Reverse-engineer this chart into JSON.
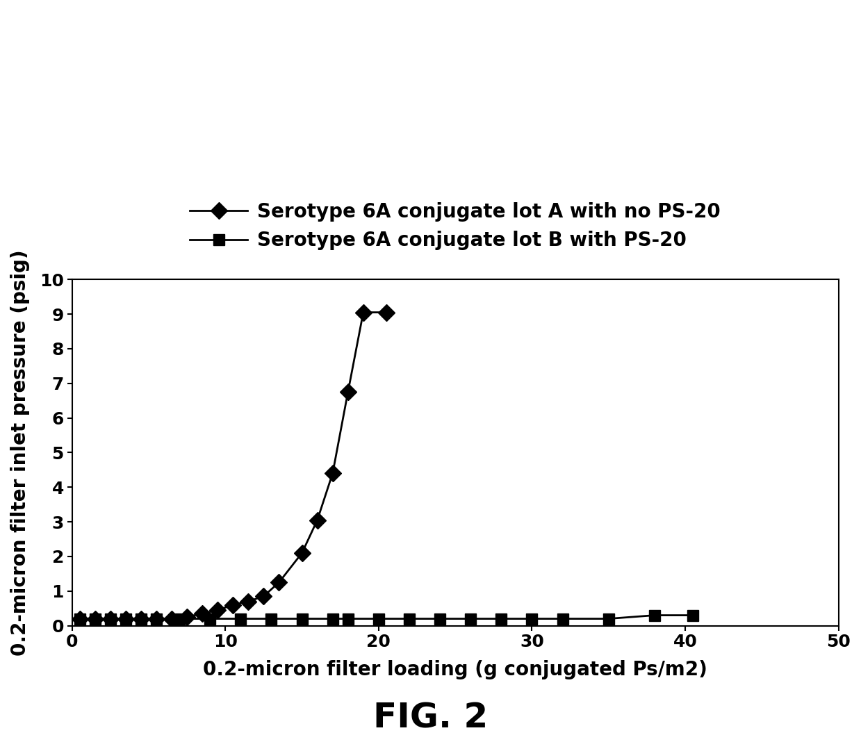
{
  "series_a_label": "Serotype 6A conjugate lot A with no PS-20",
  "series_b_label": "Serotype 6A conjugate lot B with PS-20",
  "series_a_x": [
    0.5,
    1.5,
    2.5,
    3.5,
    4.5,
    5.5,
    6.5,
    7.5,
    8.5,
    9.5,
    10.5,
    11.5,
    12.5,
    13.5,
    15,
    16,
    17,
    18,
    19,
    20.5
  ],
  "series_a_y": [
    0.2,
    0.2,
    0.2,
    0.2,
    0.2,
    0.2,
    0.2,
    0.25,
    0.35,
    0.45,
    0.6,
    0.7,
    0.85,
    1.25,
    2.1,
    3.05,
    4.4,
    6.75,
    9.05,
    9.05
  ],
  "series_b_x": [
    0.5,
    1.5,
    2.5,
    3.5,
    4.5,
    5.5,
    7,
    9,
    11,
    13,
    15,
    17,
    18,
    20,
    22,
    24,
    26,
    28,
    30,
    32,
    35,
    38,
    40.5
  ],
  "series_b_y": [
    0.2,
    0.2,
    0.2,
    0.2,
    0.2,
    0.2,
    0.2,
    0.2,
    0.2,
    0.2,
    0.2,
    0.2,
    0.2,
    0.2,
    0.2,
    0.2,
    0.2,
    0.2,
    0.2,
    0.2,
    0.2,
    0.3,
    0.3
  ],
  "xlabel": "0.2-micron filter loading (g conjugated Ps/m2)",
  "ylabel": "0.2-micron filter inlet pressure (psig)",
  "xlim": [
    0,
    50
  ],
  "ylim": [
    0,
    10
  ],
  "xticks": [
    0,
    10,
    20,
    30,
    40,
    50
  ],
  "yticks": [
    0,
    1,
    2,
    3,
    4,
    5,
    6,
    7,
    8,
    9,
    10
  ],
  "caption": "FIG. 2",
  "line_color": "#000000",
  "marker_color": "#000000",
  "bg_color": "#ffffff",
  "label_fontsize": 20,
  "tick_fontsize": 18,
  "legend_fontsize": 20,
  "caption_fontsize": 36
}
